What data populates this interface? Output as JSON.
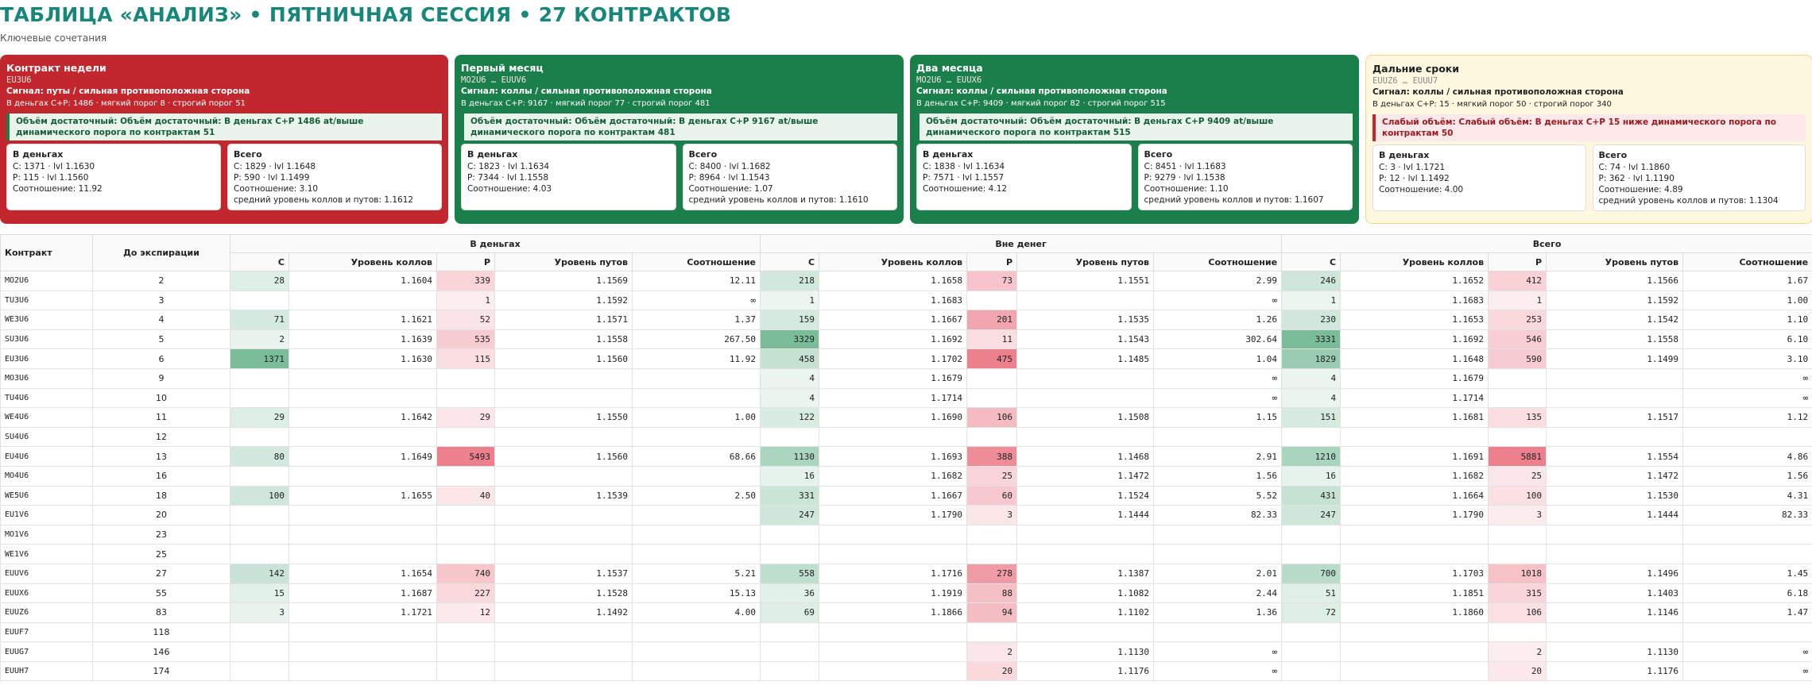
{
  "header": {
    "title": "ТАБЛИЦА «АНАЛИЗ» • ПЯТНИЧНАЯ СЕССИЯ • 27 КОНТРАКТОВ",
    "subtitle": "Ключевые сочетания"
  },
  "cards": [
    {
      "color": "#c1272d",
      "alert_kind": "ok",
      "title": "Контракт недели",
      "range": "EU3U6",
      "signal": "Сигнал: путы / сильная противоположная сторона",
      "summary": "В деньгах C+P: 1486 · мягкий порог 8 · строгий порог 51",
      "alert": "Объём достаточный: Объём достаточный: В деньгах C+P 1486 at/выше динамического порога по контрактам 51",
      "itm": {
        "title": "В деньгах",
        "lines": [
          "C: 1371 · lvl 1.1630",
          "P: 115 · lvl 1.1560",
          "Соотношение: 11.92"
        ]
      },
      "total": {
        "title": "Всего",
        "lines": [
          "C: 1829 · lvl 1.1648",
          "P: 590 · lvl 1.1499",
          "Соотношение: 3.10",
          "средний уровень коллов и путов: 1.1612"
        ]
      }
    },
    {
      "color": "#1a7f4b",
      "alert_kind": "ok",
      "title": "Первый месяц",
      "range": "MO2U6 … EUUV6",
      "signal": "Сигнал: коллы / сильная противоположная сторона",
      "summary": "В деньгах C+P: 9167 · мягкий порог 77 · строгий порог 481",
      "alert": "Объём достаточный: Объём достаточный: В деньгах C+P 9167 at/выше динамического порога по контрактам 481",
      "itm": {
        "title": "В деньгах",
        "lines": [
          "C: 1823 · lvl 1.1634",
          "P: 7344 · lvl 1.1558",
          "Соотношение: 4.03"
        ]
      },
      "total": {
        "title": "Всего",
        "lines": [
          "C: 8400 · lvl 1.1682",
          "P: 8964 · lvl 1.1543",
          "Соотношение: 1.07",
          "средний уровень коллов и путов: 1.1610"
        ]
      }
    },
    {
      "color": "#1a7f4b",
      "alert_kind": "ok",
      "title": "Два месяца",
      "range": "MO2U6 … EUUX6",
      "signal": "Сигнал: коллы / сильная противоположная сторона",
      "summary": "В деньгах C+P: 9409 · мягкий порог 82 · строгий порог 515",
      "alert": "Объём достаточный: Объём достаточный: В деньгах C+P 9409 at/выше динамического порога по контрактам 515",
      "itm": {
        "title": "В деньгах",
        "lines": [
          "C: 1838 · lvl 1.1634",
          "P: 7571 · lvl 1.1557",
          "Соотношение: 4.12"
        ]
      },
      "total": {
        "title": "Всего",
        "lines": [
          "C: 8451 · lvl 1.1683",
          "P: 9279 · lvl 1.1538",
          "Соотношение: 1.10",
          "средний уровень коллов и путов: 1.1607"
        ]
      }
    },
    {
      "color": "#fff8e1",
      "alert_kind": "weak",
      "title": "Дальние сроки",
      "range": "EUUZ6 … EUUU7",
      "signal": "Сигнал: коллы / сильная противоположная сторона",
      "summary": "В деньгах C+P: 15 · мягкий порог 50 · строгий порог 340",
      "alert": "Слабый объём: Слабый объём: В деньгах C+P 15 ниже динамического порога по контрактам 50",
      "itm": {
        "title": "В деньгах",
        "lines": [
          "C: 3 · lvl 1.1721",
          "P: 12 · lvl 1.1492",
          "Соотношение: 4.00"
        ]
      },
      "total": {
        "title": "Всего",
        "lines": [
          "C: 74 · lvl 1.1860",
          "P: 362 · lvl 1.1190",
          "Соотношение: 4.89",
          "средний уровень коллов и путов: 1.1304"
        ]
      }
    }
  ],
  "table": {
    "contract_header": "Контракт",
    "days_header": "До экспирации",
    "groups": [
      "В деньгах",
      "Вне денег",
      "Всего"
    ],
    "columns": [
      "С",
      "Уровень коллов",
      "Р",
      "Уровень путов",
      "Соотношение"
    ],
    "rows": [
      [
        "MO2U6",
        "2",
        "28",
        "1.1604",
        "339",
        "1.1569",
        "12.11",
        "218",
        "1.1658",
        "73",
        "1.1551",
        "2.99",
        "246",
        "1.1652",
        "412",
        "1.1566",
        "1.67"
      ],
      [
        "TU3U6",
        "3",
        null,
        null,
        "1",
        "1.1592",
        "∞",
        "1",
        "1.1683",
        null,
        null,
        "∞",
        "1",
        "1.1683",
        "1",
        "1.1592",
        "1.00"
      ],
      [
        "WE3U6",
        "4",
        "71",
        "1.1621",
        "52",
        "1.1571",
        "1.37",
        "159",
        "1.1667",
        "201",
        "1.1535",
        "1.26",
        "230",
        "1.1653",
        "253",
        "1.1542",
        "1.10"
      ],
      [
        "SU3U6",
        "5",
        "2",
        "1.1639",
        "535",
        "1.1558",
        "267.50",
        "3329",
        "1.1692",
        "11",
        "1.1543",
        "302.64",
        "3331",
        "1.1692",
        "546",
        "1.1558",
        "6.10"
      ],
      [
        "EU3U6",
        "6",
        "1371",
        "1.1630",
        "115",
        "1.1560",
        "11.92",
        "458",
        "1.1702",
        "475",
        "1.1485",
        "1.04",
        "1829",
        "1.1648",
        "590",
        "1.1499",
        "3.10"
      ],
      [
        "MO3U6",
        "9",
        null,
        null,
        null,
        null,
        null,
        "4",
        "1.1679",
        null,
        null,
        "∞",
        "4",
        "1.1679",
        null,
        null,
        "∞"
      ],
      [
        "TU4U6",
        "10",
        null,
        null,
        null,
        null,
        null,
        "4",
        "1.1714",
        null,
        null,
        "∞",
        "4",
        "1.1714",
        null,
        null,
        "∞"
      ],
      [
        "WE4U6",
        "11",
        "29",
        "1.1642",
        "29",
        "1.1550",
        "1.00",
        "122",
        "1.1690",
        "106",
        "1.1508",
        "1.15",
        "151",
        "1.1681",
        "135",
        "1.1517",
        "1.12"
      ],
      [
        "SU4U6",
        "12",
        null,
        null,
        null,
        null,
        null,
        null,
        null,
        null,
        null,
        null,
        null,
        null,
        null,
        null,
        null
      ],
      [
        "EU4U6",
        "13",
        "80",
        "1.1649",
        "5493",
        "1.1560",
        "68.66",
        "1130",
        "1.1693",
        "388",
        "1.1468",
        "2.91",
        "1210",
        "1.1691",
        "5881",
        "1.1554",
        "4.86"
      ],
      [
        "MO4U6",
        "16",
        null,
        null,
        null,
        null,
        null,
        "16",
        "1.1682",
        "25",
        "1.1472",
        "1.56",
        "16",
        "1.1682",
        "25",
        "1.1472",
        "1.56"
      ],
      [
        "WE5U6",
        "18",
        "100",
        "1.1655",
        "40",
        "1.1539",
        "2.50",
        "331",
        "1.1667",
        "60",
        "1.1524",
        "5.52",
        "431",
        "1.1664",
        "100",
        "1.1530",
        "4.31"
      ],
      [
        "EU1V6",
        "20",
        null,
        null,
        null,
        null,
        null,
        "247",
        "1.1790",
        "3",
        "1.1444",
        "82.33",
        "247",
        "1.1790",
        "3",
        "1.1444",
        "82.33"
      ],
      [
        "MO1V6",
        "23",
        null,
        null,
        null,
        null,
        null,
        null,
        null,
        null,
        null,
        null,
        null,
        null,
        null,
        null,
        null
      ],
      [
        "WE1V6",
        "25",
        null,
        null,
        null,
        null,
        null,
        null,
        null,
        null,
        null,
        null,
        null,
        null,
        null,
        null,
        null
      ],
      [
        "EUUV6",
        "27",
        "142",
        "1.1654",
        "740",
        "1.1537",
        "5.21",
        "558",
        "1.1716",
        "278",
        "1.1387",
        "2.01",
        "700",
        "1.1703",
        "1018",
        "1.1496",
        "1.45"
      ],
      [
        "EUUX6",
        "55",
        "15",
        "1.1687",
        "227",
        "1.1528",
        "15.13",
        "36",
        "1.1919",
        "88",
        "1.1082",
        "2.44",
        "51",
        "1.1851",
        "315",
        "1.1403",
        "6.18"
      ],
      [
        "EUUZ6",
        "83",
        "3",
        "1.1721",
        "12",
        "1.1492",
        "4.00",
        "69",
        "1.1866",
        "94",
        "1.1102",
        "1.36",
        "72",
        "1.1860",
        "106",
        "1.1146",
        "1.47"
      ],
      [
        "EUUF7",
        "118",
        null,
        null,
        null,
        null,
        null,
        null,
        null,
        null,
        null,
        null,
        null,
        null,
        null,
        null,
        null
      ],
      [
        "EUUG7",
        "146",
        null,
        null,
        null,
        null,
        null,
        null,
        null,
        "2",
        "1.1130",
        "∞",
        null,
        null,
        "2",
        "1.1130",
        "∞"
      ],
      [
        "EUUH7",
        "174",
        null,
        null,
        null,
        null,
        null,
        null,
        null,
        "20",
        "1.1176",
        "∞",
        null,
        null,
        "20",
        "1.1176",
        "∞"
      ]
    ]
  }
}
